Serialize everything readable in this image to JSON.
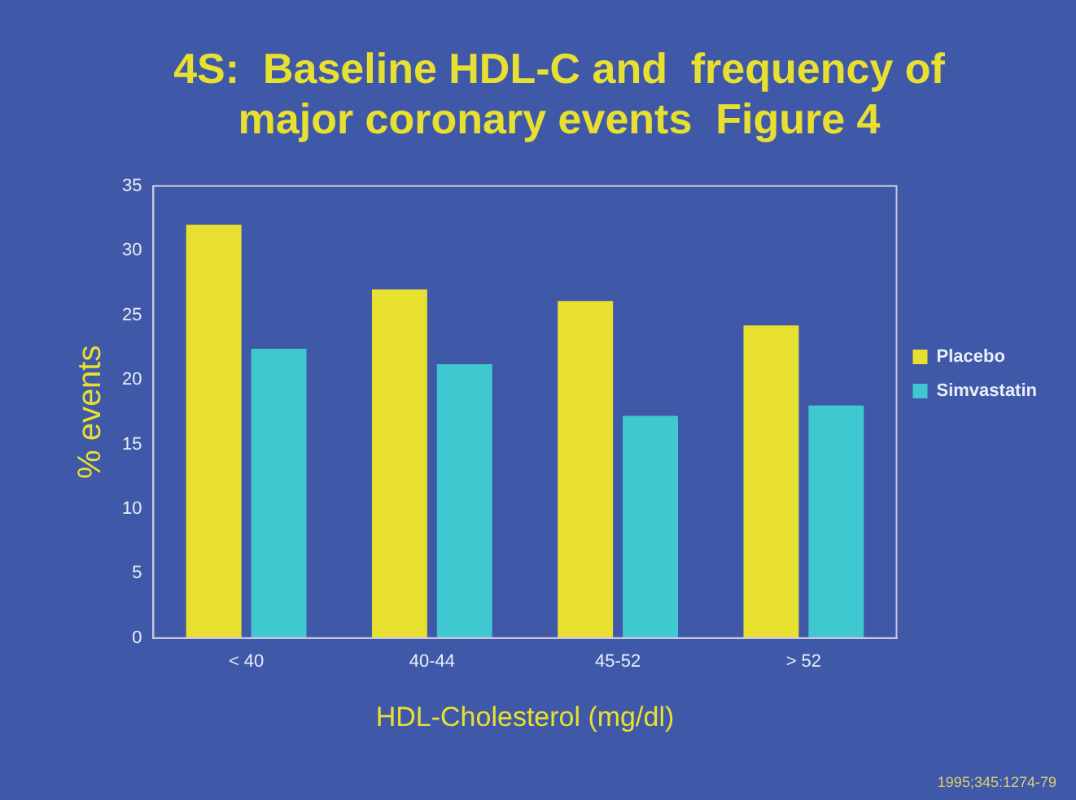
{
  "chart_data": {
    "type": "bar",
    "title": [
      "4S:  Baseline HDL-C and  frequency of",
      "major coronary events  Figure 4"
    ],
    "xlabel": "HDL-Cholesterol (mg/dl)",
    "ylabel": "% events",
    "categories": [
      "< 40",
      "40-44",
      "45-52",
      "> 52"
    ],
    "series": [
      {
        "name": "Placebo",
        "color": "#e8e030",
        "values": [
          32,
          27,
          26.1,
          24.2
        ]
      },
      {
        "name": "Simvastatin",
        "color": "#40c8d0",
        "values": [
          22.4,
          21.2,
          17.2,
          18
        ]
      }
    ],
    "ylim": [
      0,
      35
    ],
    "yticks": [
      0,
      5,
      10,
      15,
      20,
      25,
      30,
      35
    ],
    "grid": false,
    "legend": "right",
    "annotations": [
      "1995;345:1274-79"
    ]
  }
}
